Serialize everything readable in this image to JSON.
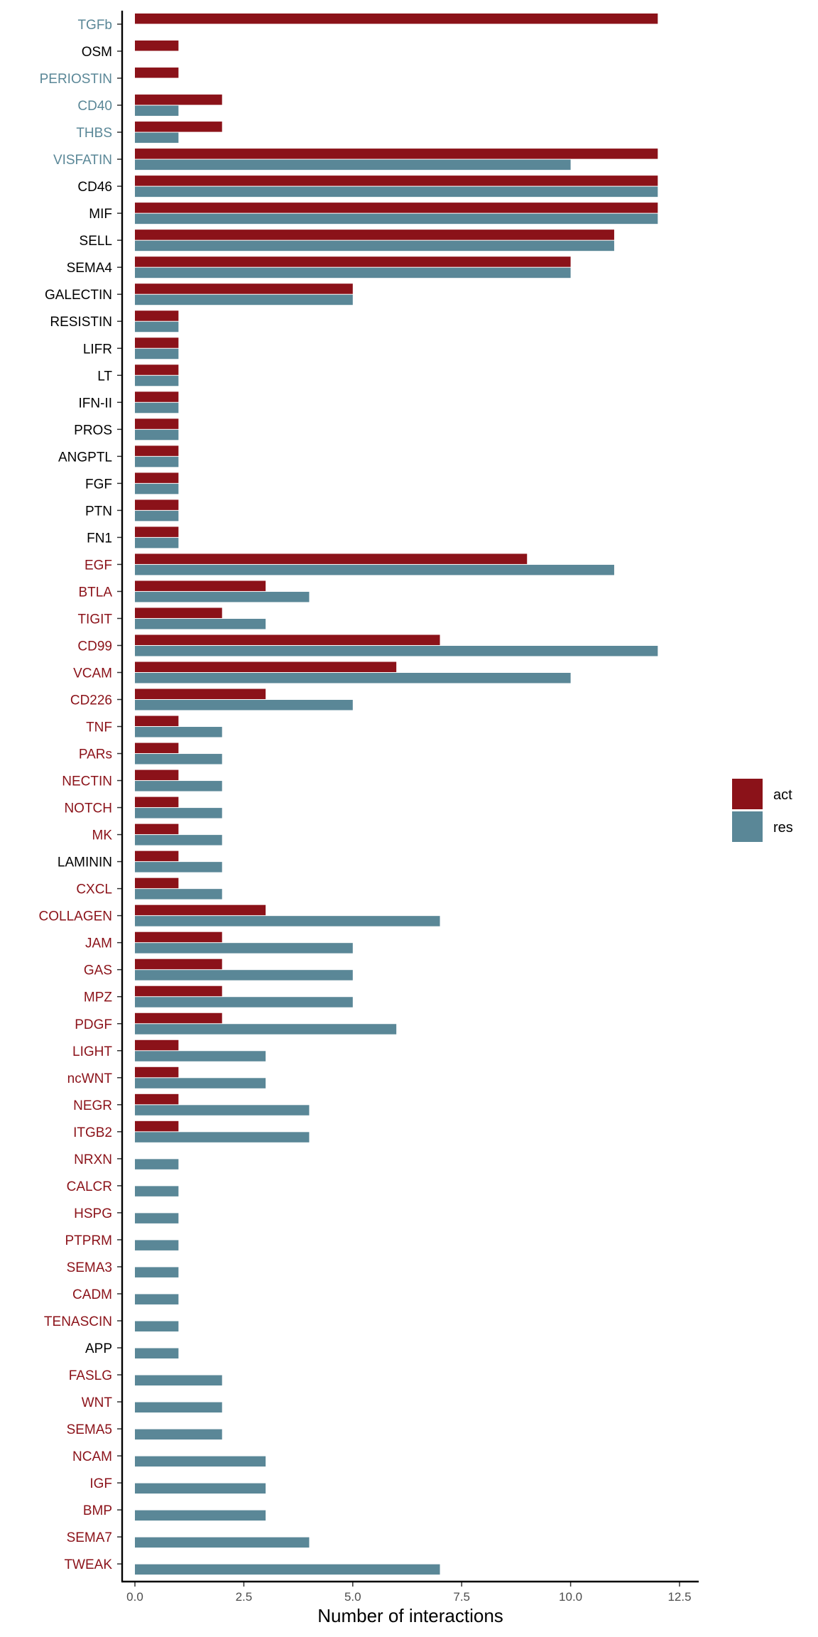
{
  "chart_data": {
    "type": "bar",
    "orientation": "horizontal",
    "title": "",
    "xlabel": "Number of interactions",
    "ylabel": "",
    "xlim": [
      0,
      12.5
    ],
    "xticks": [
      0,
      2.5,
      5,
      7.5,
      10,
      12.5
    ],
    "xtick_labels": [
      "0.0",
      "2.5",
      "5.0",
      "7.5",
      "10.0",
      "12.5"
    ],
    "grid": false,
    "legend_position": "right",
    "colors": {
      "act": "#8b1219",
      "res": "#5a8797",
      "label_act": "#8b1219",
      "label_res": "#5a8797",
      "label_neutral": "#000000"
    },
    "categories": [
      "TGFb",
      "OSM",
      "PERIOSTIN",
      "CD40",
      "THBS",
      "VISFATIN",
      "CD46",
      "MIF",
      "SELL",
      "SEMA4",
      "GALECTIN",
      "RESISTIN",
      "LIFR",
      "LT",
      "IFN-II",
      "PROS",
      "ANGPTL",
      "FGF",
      "PTN",
      "FN1",
      "EGF",
      "BTLA",
      "TIGIT",
      "CD99",
      "VCAM",
      "CD226",
      "TNF",
      "PARs",
      "NECTIN",
      "NOTCH",
      "MK",
      "LAMININ",
      "CXCL",
      "COLLAGEN",
      "JAM",
      "GAS",
      "MPZ",
      "PDGF",
      "LIGHT",
      "ncWNT",
      "NEGR",
      "ITGB2",
      "NRXN",
      "CALCR",
      "HSPG",
      "PTPRM",
      "SEMA3",
      "CADM",
      "TENASCIN",
      "APP",
      "FASLG",
      "WNT",
      "SEMA5",
      "NCAM",
      "IGF",
      "BMP",
      "SEMA7",
      "TWEAK"
    ],
    "category_label_colors": [
      "res",
      "neutral",
      "res",
      "res",
      "res",
      "res",
      "neutral",
      "neutral",
      "neutral",
      "neutral",
      "neutral",
      "neutral",
      "neutral",
      "neutral",
      "neutral",
      "neutral",
      "neutral",
      "neutral",
      "neutral",
      "neutral",
      "act",
      "act",
      "act",
      "act",
      "act",
      "act",
      "act",
      "act",
      "act",
      "act",
      "act",
      "neutral",
      "act",
      "act",
      "act",
      "act",
      "act",
      "act",
      "act",
      "act",
      "act",
      "act",
      "act",
      "act",
      "act",
      "act",
      "act",
      "act",
      "act",
      "neutral",
      "act",
      "act",
      "act",
      "act",
      "act",
      "act",
      "act",
      "act"
    ],
    "series": [
      {
        "name": "act",
        "values": [
          12,
          1,
          1,
          2,
          2,
          12,
          12,
          12,
          11,
          10,
          5,
          1,
          1,
          1,
          1,
          1,
          1,
          1,
          1,
          1,
          9,
          3,
          2,
          7,
          6,
          3,
          1,
          1,
          1,
          1,
          1,
          1,
          1,
          3,
          2,
          2,
          2,
          2,
          1,
          1,
          1,
          1,
          0,
          0,
          0,
          0,
          0,
          0,
          0,
          0,
          0,
          0,
          0,
          0,
          0,
          0,
          0,
          0
        ]
      },
      {
        "name": "res",
        "values": [
          0,
          0,
          0,
          1,
          1,
          10,
          12,
          12,
          11,
          10,
          5,
          1,
          1,
          1,
          1,
          1,
          1,
          1,
          1,
          1,
          11,
          4,
          3,
          12,
          10,
          5,
          2,
          2,
          2,
          2,
          2,
          2,
          2,
          7,
          5,
          5,
          5,
          6,
          3,
          3,
          4,
          4,
          1,
          1,
          1,
          1,
          1,
          1,
          1,
          1,
          2,
          2,
          2,
          3,
          3,
          3,
          4,
          7
        ]
      }
    ]
  }
}
